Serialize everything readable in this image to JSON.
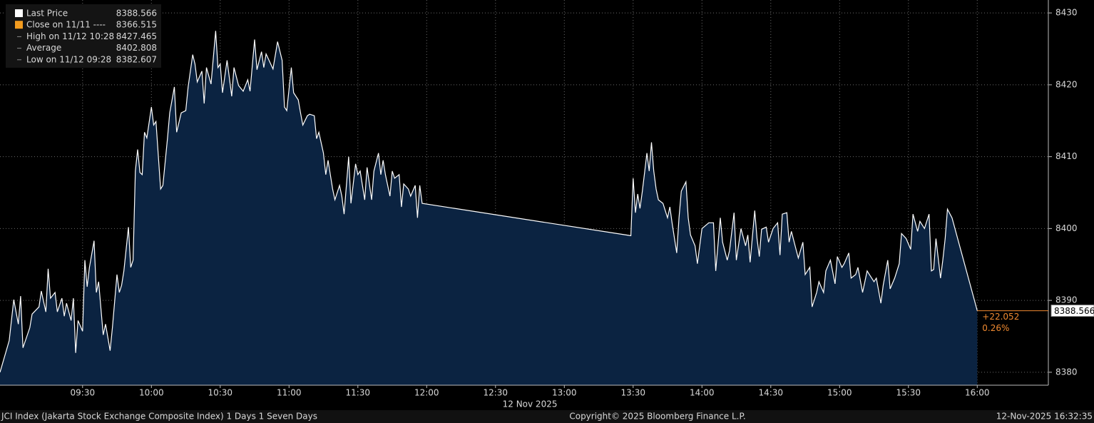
{
  "chart_data": {
    "type": "area",
    "x": [
      "08:54",
      "08:58",
      "09:00",
      "09:02",
      "09:03",
      "09:04",
      "09:07",
      "09:08",
      "09:11",
      "09:12",
      "09:14",
      "09:15",
      "09:16",
      "09:18",
      "09:19",
      "09:21",
      "09:22",
      "09:23",
      "09:25",
      "09:26",
      "09:27",
      "09:28",
      "09:30",
      "09:31",
      "09:32",
      "09:33",
      "09:35",
      "09:36",
      "09:37",
      "09:39",
      "09:40",
      "09:42",
      "09:43",
      "09:45",
      "09:46",
      "09:47",
      "09:48",
      "09:50",
      "09:51",
      "09:52",
      "09:53",
      "09:54",
      "09:55",
      "09:56",
      "09:57",
      "09:58",
      "10:00",
      "10:01",
      "10:02",
      "10:04",
      "10:05",
      "10:07",
      "10:08",
      "10:10",
      "10:11",
      "10:13",
      "10:15",
      "10:16",
      "10:18",
      "10:19",
      "10:20",
      "10:22",
      "10:23",
      "10:24",
      "10:26",
      "10:28",
      "10:29",
      "10:30",
      "10:31",
      "10:33",
      "10:34",
      "10:35",
      "10:36",
      "10:38",
      "10:40",
      "10:42",
      "10:43",
      "10:45",
      "10:46",
      "10:48",
      "10:49",
      "10:50",
      "10:52",
      "10:53",
      "10:55",
      "10:57",
      "10:58",
      "10:59",
      "11:01",
      "11:02",
      "11:04",
      "11:05",
      "11:06",
      "11:08",
      "11:09",
      "11:11",
      "11:12",
      "11:13",
      "11:15",
      "11:16",
      "11:17",
      "11:19",
      "11:20",
      "11:22",
      "11:23",
      "11:24",
      "11:26",
      "11:27",
      "11:29",
      "11:30",
      "11:31",
      "11:33",
      "11:34",
      "11:36",
      "11:37",
      "11:39",
      "11:40",
      "11:41",
      "11:42",
      "11:44",
      "11:45",
      "11:46",
      "11:48",
      "11:49",
      "11:50",
      "11:52",
      "11:53",
      "11:55",
      "11:56",
      "11:57",
      "11:58",
      "13:29",
      "13:30",
      "13:31",
      "13:32",
      "13:33",
      "13:34",
      "13:36",
      "13:37",
      "13:38",
      "13:39",
      "13:40",
      "13:41",
      "13:43",
      "13:45",
      "13:46",
      "13:47",
      "13:49",
      "13:50",
      "13:51",
      "13:53",
      "13:54",
      "13:55",
      "13:57",
      "13:58",
      "14:00",
      "14:03",
      "14:05",
      "14:06",
      "14:08",
      "14:09",
      "14:11",
      "14:12",
      "14:14",
      "14:15",
      "14:17",
      "14:19",
      "14:20",
      "14:21",
      "14:23",
      "14:24",
      "14:25",
      "14:26",
      "14:28",
      "14:29",
      "14:31",
      "14:33",
      "14:34",
      "14:35",
      "14:37",
      "14:38",
      "14:39",
      "14:41",
      "14:42",
      "14:44",
      "14:45",
      "14:47",
      "14:48",
      "14:50",
      "14:51",
      "14:53",
      "14:54",
      "14:56",
      "14:58",
      "14:59",
      "15:01",
      "15:02",
      "15:04",
      "15:05",
      "15:07",
      "15:08",
      "15:10",
      "15:12",
      "15:13",
      "15:15",
      "15:16",
      "15:18",
      "15:19",
      "15:21",
      "15:22",
      "15:24",
      "15:26",
      "15:27",
      "15:29",
      "15:31",
      "15:32",
      "15:34",
      "15:35",
      "15:37",
      "15:39",
      "15:40",
      "15:41",
      "15:42",
      "15:44",
      "15:45",
      "15:46",
      "15:47",
      "15:49",
      "16:00"
    ],
    "series": [
      {
        "name": "Last Price",
        "color": "#ffffff",
        "fill": "#0b2341",
        "legend_value": 8388.566,
        "values": [
          8380.0,
          8384.4,
          8390.1,
          8386.7,
          8390.6,
          8383.4,
          8386.2,
          8388.1,
          8389.1,
          8391.3,
          8388.4,
          8394.4,
          8390.3,
          8391.1,
          8388.4,
          8390.3,
          8387.8,
          8389.6,
          8387.2,
          8390.3,
          8382.7,
          8387.2,
          8385.7,
          8395.6,
          8391.9,
          8394.6,
          8398.3,
          8391.1,
          8392.6,
          8385.2,
          8386.7,
          8383.0,
          8386.2,
          8393.6,
          8391.1,
          8392.1,
          8394.1,
          8400.2,
          8394.6,
          8395.6,
          8408.0,
          8411.0,
          8407.8,
          8407.5,
          8413.4,
          8412.6,
          8416.9,
          8414.4,
          8414.9,
          8405.5,
          8406.0,
          8412.5,
          8416.1,
          8419.7,
          8413.4,
          8416.1,
          8416.4,
          8419.7,
          8424.2,
          8422.9,
          8420.4,
          8421.9,
          8417.4,
          8422.4,
          8420.1,
          8427.5,
          8422.4,
          8422.9,
          8418.9,
          8423.4,
          8420.9,
          8418.4,
          8422.4,
          8419.9,
          8419.1,
          8420.7,
          8419.1,
          8426.3,
          8422.1,
          8424.6,
          8422.4,
          8424.3,
          8422.9,
          8422.2,
          8426.0,
          8423.4,
          8416.9,
          8416.4,
          8422.4,
          8418.9,
          8417.9,
          8416.1,
          8414.4,
          8415.7,
          8415.9,
          8415.7,
          8412.5,
          8413.4,
          8410.5,
          8407.5,
          8409.5,
          8405.5,
          8404.0,
          8406.0,
          8404.5,
          8402.0,
          8410.0,
          8403.5,
          8409.0,
          8407.5,
          8408.0,
          8404.0,
          8408.5,
          8404.0,
          8408.0,
          8410.5,
          8407.5,
          8409.5,
          8407.5,
          8404.5,
          8408.0,
          8407.0,
          8407.5,
          8403.0,
          8406.2,
          8405.5,
          8404.5,
          8406.0,
          8401.5,
          8406.0,
          8403.5,
          8399.0,
          8407.0,
          8402.2,
          8404.8,
          8402.8,
          8405.2,
          8410.5,
          8408.0,
          8412.0,
          8408.0,
          8405.5,
          8404.0,
          8403.5,
          8401.5,
          8403.0,
          8400.7,
          8396.6,
          8401.5,
          8405.2,
          8406.5,
          8401.5,
          8399.1,
          8397.6,
          8395.1,
          8400.0,
          8400.8,
          8400.8,
          8394.1,
          8401.5,
          8398.1,
          8395.6,
          8396.9,
          8402.2,
          8395.6,
          8400.0,
          8397.6,
          8399.1,
          8395.3,
          8402.5,
          8398.6,
          8396.1,
          8399.9,
          8400.2,
          8398.1,
          8400.0,
          8400.8,
          8396.3,
          8402.0,
          8402.2,
          8398.1,
          8399.6,
          8397.1,
          8395.9,
          8398.1,
          8393.6,
          8394.6,
          8389.1,
          8391.1,
          8392.6,
          8391.1,
          8394.1,
          8395.6,
          8392.3,
          8396.1,
          8394.6,
          8395.1,
          8396.6,
          8393.1,
          8393.6,
          8394.6,
          8391.1,
          8394.1,
          8393.6,
          8392.6,
          8393.1,
          8389.6,
          8392.1,
          8395.6,
          8391.6,
          8393.1,
          8395.1,
          8399.3,
          8398.6,
          8397.1,
          8402.0,
          8399.6,
          8401.0,
          8400.0,
          8402.0,
          8394.1,
          8394.3,
          8398.6,
          8393.1,
          8395.6,
          8398.6,
          8402.7,
          8401.5,
          8388.566
        ]
      }
    ],
    "stats": [
      {
        "label": "Close on 11/11 ----",
        "value": 8366.515,
        "color": "#f39c1f"
      },
      {
        "label": "High on 11/12 10:28",
        "value": 8427.465
      },
      {
        "label": "Average",
        "value": 8402.808
      },
      {
        "label": "Low on 11/12 09:28",
        "value": 8382.607
      }
    ],
    "change": "+22.052",
    "change_pct": "0.26%",
    "change_color": "#f08a30",
    "xlim": [
      "08:54",
      "16:31"
    ],
    "xticks": [
      "09:30",
      "10:00",
      "10:30",
      "11:00",
      "11:30",
      "12:00",
      "12:30",
      "13:00",
      "13:30",
      "14:00",
      "14:30",
      "15:00",
      "15:30",
      "16:00"
    ],
    "xlabel": "12 Nov 2025",
    "ylim": [
      8378.2,
      8431.8
    ],
    "yticks": [
      8380,
      8390,
      8400,
      8410,
      8420,
      8430
    ],
    "grid": true,
    "footer": {
      "left": "JCI Index (Jakarta Stock Exchange Composite Index) 1 Days 1 Seven Days",
      "center": "Copyright© 2025 Bloomberg Finance L.P.",
      "right": "12-Nov-2025 16:32:35"
    }
  }
}
